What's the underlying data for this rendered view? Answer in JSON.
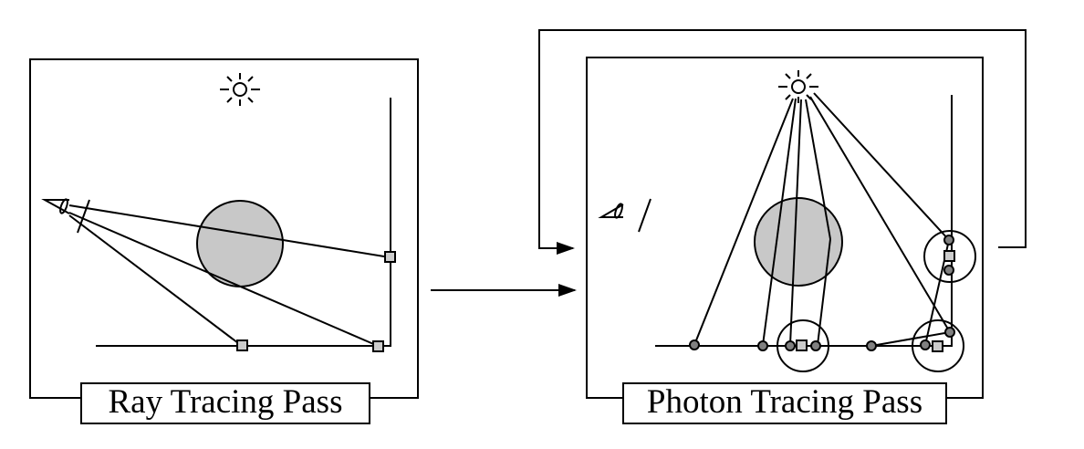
{
  "panels": {
    "ray_tracing": {
      "caption": "Ray Tracing Pass"
    },
    "photon_tracing": {
      "caption": "Photon Tracing Pass"
    }
  },
  "colors": {
    "line": "#000000",
    "sphere_fill": "#c8c8c8",
    "marker_fill": "#cccccc",
    "photon_dot_fill": "#808080",
    "background": "#ffffff"
  },
  "icons": [
    "light-source-icon",
    "eye-icon",
    "arrow-icon"
  ]
}
